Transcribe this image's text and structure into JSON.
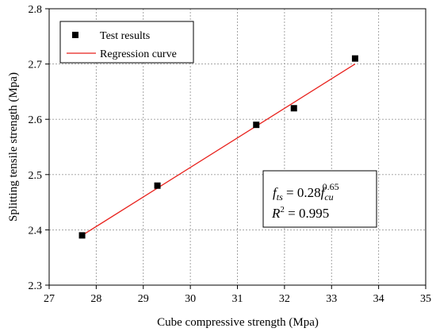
{
  "chart_data": {
    "type": "scatter",
    "xlabel": "Cube compressive strength (Mpa)",
    "ylabel": "Splitting tensile strength (Mpa)",
    "xlim": [
      27,
      35
    ],
    "ylim": [
      2.3,
      2.8
    ],
    "xticks": [
      "27",
      "28",
      "29",
      "30",
      "31",
      "32",
      "33",
      "34",
      "35"
    ],
    "yticks": [
      "2.3",
      "2.4",
      "2.5",
      "2.6",
      "2.7",
      "2.8"
    ],
    "grid": true,
    "legend_position": "top-left",
    "series": [
      {
        "name": "Test results",
        "kind": "markers",
        "marker": "square",
        "color": "#000000",
        "x": [
          27.7,
          29.3,
          31.4,
          32.2,
          33.5
        ],
        "y": [
          2.39,
          2.48,
          2.59,
          2.62,
          2.71
        ]
      },
      {
        "name": "Regression curve",
        "kind": "line",
        "color": "#e8211c",
        "x": [
          27.7,
          33.5
        ],
        "y": [
          2.39,
          2.7
        ]
      }
    ],
    "annotation": {
      "eq_main": "f",
      "eq_main_sub": "ts",
      "eq_mid": " = 0.28",
      "eq_f2": "f",
      "eq_f2_sub": "cu",
      "eq_exp": "0.65",
      "r2_label": "R",
      "r2_exp": "2",
      "r2_value": " = 0.995"
    }
  }
}
